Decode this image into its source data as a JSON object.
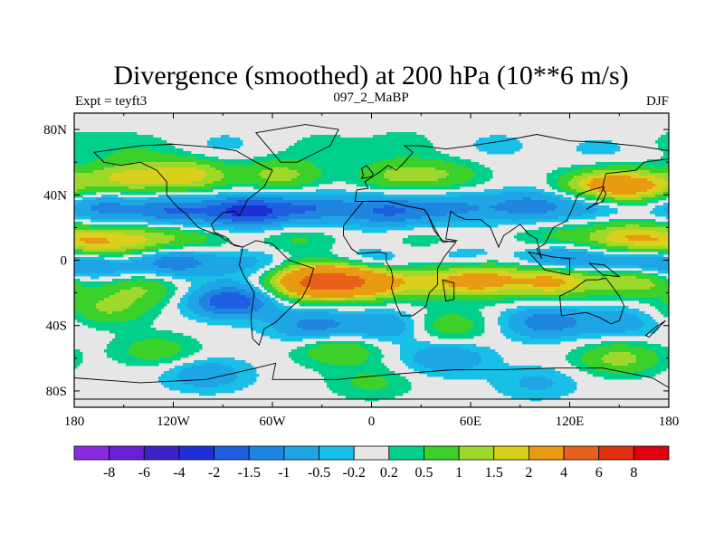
{
  "chart_data": {
    "type": "heatmap",
    "title": "Divergence (smoothed) at 200 hPa (10**6 m/s)",
    "subtitle_left": "Expt = teyft3",
    "subtitle_center": "097_2_MaBP",
    "subtitle_right": "DJF",
    "xlim": [
      -180,
      180
    ],
    "ylim": [
      -90,
      90
    ],
    "x_ticks": [
      {
        "value": -180,
        "label": "180"
      },
      {
        "value": -120,
        "label": "120W"
      },
      {
        "value": -60,
        "label": "60W"
      },
      {
        "value": 0,
        "label": "0"
      },
      {
        "value": 60,
        "label": "60E"
      },
      {
        "value": 120,
        "label": "120E"
      },
      {
        "value": 180,
        "label": "180"
      }
    ],
    "y_ticks": [
      {
        "value": 80,
        "label": "80N"
      },
      {
        "value": 40,
        "label": "40N"
      },
      {
        "value": 0,
        "label": "0"
      },
      {
        "value": -40,
        "label": "40S"
      },
      {
        "value": -80,
        "label": "80S"
      }
    ],
    "colorbar": {
      "boundaries": [
        "-8",
        "-6",
        "-4",
        "-2",
        "-1.5",
        "-1",
        "-0.5",
        "-0.2",
        "0.2",
        "0.5",
        "1",
        "1.5",
        "2",
        "4",
        "6",
        "8"
      ],
      "colors": [
        "#8a2be2",
        "#6a1fd8",
        "#3d22c8",
        "#1f2fd6",
        "#1d5fe0",
        "#1e86e0",
        "#1ea5e6",
        "#18c0e8",
        "#e6e6e6",
        "#00d08a",
        "#3bd02a",
        "#9ed82a",
        "#d8d01a",
        "#e89a10",
        "#e8601a",
        "#e03010",
        "#e00010"
      ]
    },
    "features": [
      {
        "lon": -175,
        "lat": 72,
        "value": 0.3
      },
      {
        "lon": -140,
        "lat": 68,
        "value": 0.4
      },
      {
        "lon": -90,
        "lat": 70,
        "value": -0.3
      },
      {
        "lon": -30,
        "lat": 70,
        "value": 0.3
      },
      {
        "lon": 20,
        "lat": 72,
        "value": 0.3
      },
      {
        "lon": 75,
        "lat": 70,
        "value": -0.3
      },
      {
        "lon": 140,
        "lat": 68,
        "value": -0.3
      },
      {
        "lon": -150,
        "lat": 50,
        "value": 1.5
      },
      {
        "lon": -112,
        "lat": 52,
        "value": 1.8
      },
      {
        "lon": -55,
        "lat": 52,
        "value": 1.2
      },
      {
        "lon": 15,
        "lat": 52,
        "value": 1.0
      },
      {
        "lon": 45,
        "lat": 52,
        "value": 0.8
      },
      {
        "lon": 140,
        "lat": 45,
        "value": 2.3
      },
      {
        "lon": 165,
        "lat": 45,
        "value": 1.6
      },
      {
        "lon": -165,
        "lat": 33,
        "value": -1.2
      },
      {
        "lon": -120,
        "lat": 30,
        "value": -1.5
      },
      {
        "lon": -75,
        "lat": 30,
        "value": -2.2
      },
      {
        "lon": -35,
        "lat": 32,
        "value": -1.3
      },
      {
        "lon": 10,
        "lat": 30,
        "value": -1.5
      },
      {
        "lon": 50,
        "lat": 32,
        "value": -1.0
      },
      {
        "lon": 95,
        "lat": 33,
        "value": -1.2
      },
      {
        "lon": 135,
        "lat": 35,
        "value": -1.0
      },
      {
        "lon": -170,
        "lat": 10,
        "value": 1.7
      },
      {
        "lon": -140,
        "lat": 12,
        "value": 1.3
      },
      {
        "lon": -110,
        "lat": 12,
        "value": 0.8
      },
      {
        "lon": -45,
        "lat": 12,
        "value": 0.6
      },
      {
        "lon": 30,
        "lat": 12,
        "value": 0.4
      },
      {
        "lon": 110,
        "lat": 13,
        "value": 0.7
      },
      {
        "lon": 155,
        "lat": 13,
        "value": 2.0
      },
      {
        "lon": -170,
        "lat": -3,
        "value": -1.2
      },
      {
        "lon": -120,
        "lat": 0,
        "value": -1.6
      },
      {
        "lon": -70,
        "lat": -2,
        "value": -0.7
      },
      {
        "lon": 0,
        "lat": -2,
        "value": -0.8
      },
      {
        "lon": 55,
        "lat": 0,
        "value": -0.6
      },
      {
        "lon": 115,
        "lat": 0,
        "value": -1.6
      },
      {
        "lon": 160,
        "lat": 0,
        "value": -1.3
      },
      {
        "lon": -35,
        "lat": -13,
        "value": 4.0
      },
      {
        "lon": -8,
        "lat": -13,
        "value": 3.2
      },
      {
        "lon": 30,
        "lat": -13,
        "value": 1.2
      },
      {
        "lon": 65,
        "lat": -12,
        "value": 2.4
      },
      {
        "lon": 110,
        "lat": -12,
        "value": 2.4
      },
      {
        "lon": 160,
        "lat": -12,
        "value": 1.6
      },
      {
        "lon": -140,
        "lat": -17,
        "value": 1.0
      },
      {
        "lon": -85,
        "lat": -25,
        "value": -2.0
      },
      {
        "lon": -160,
        "lat": -30,
        "value": 1.0
      },
      {
        "lon": -35,
        "lat": -40,
        "value": -1.2
      },
      {
        "lon": 10,
        "lat": -40,
        "value": -1.0
      },
      {
        "lon": 45,
        "lat": -40,
        "value": 0.9
      },
      {
        "lon": 105,
        "lat": -38,
        "value": -1.3
      },
      {
        "lon": 150,
        "lat": -38,
        "value": -0.8
      },
      {
        "lon": -130,
        "lat": -55,
        "value": 0.8
      },
      {
        "lon": -20,
        "lat": -55,
        "value": 1.0
      },
      {
        "lon": 45,
        "lat": -60,
        "value": -1.0
      },
      {
        "lon": 150,
        "lat": -60,
        "value": 1.2
      },
      {
        "lon": -100,
        "lat": -70,
        "value": -0.9
      },
      {
        "lon": 0,
        "lat": -75,
        "value": 0.6
      },
      {
        "lon": 100,
        "lat": -75,
        "value": -0.6
      }
    ],
    "coastlines": [
      [
        [
          -168,
          66
        ],
        [
          -140,
          70
        ],
        [
          -120,
          71
        ],
        [
          -95,
          69
        ],
        [
          -82,
          67
        ],
        [
          -70,
          60
        ],
        [
          -60,
          55
        ],
        [
          -65,
          45
        ],
        [
          -75,
          37
        ],
        [
          -80,
          27
        ],
        [
          -83,
          30
        ],
        [
          -90,
          29
        ],
        [
          -97,
          22
        ],
        [
          -95,
          17
        ],
        [
          -88,
          14
        ],
        [
          -83,
          9
        ],
        [
          -78,
          8
        ],
        [
          -85,
          10
        ],
        [
          -92,
          15
        ],
        [
          -105,
          20
        ],
        [
          -112,
          28
        ],
        [
          -118,
          33
        ],
        [
          -124,
          40
        ],
        [
          -124,
          48
        ],
        [
          -130,
          55
        ],
        [
          -140,
          60
        ],
        [
          -152,
          58
        ],
        [
          -162,
          60
        ],
        [
          -168,
          66
        ]
      ],
      [
        [
          -55,
          60
        ],
        [
          -45,
          60
        ],
        [
          -25,
          70
        ],
        [
          -20,
          80
        ],
        [
          -40,
          83
        ],
        [
          -70,
          78
        ],
        [
          -55,
          60
        ]
      ],
      [
        [
          -78,
          8
        ],
        [
          -70,
          12
        ],
        [
          -60,
          10
        ],
        [
          -50,
          0
        ],
        [
          -35,
          -5
        ],
        [
          -38,
          -15
        ],
        [
          -42,
          -23
        ],
        [
          -50,
          -30
        ],
        [
          -58,
          -38
        ],
        [
          -65,
          -42
        ],
        [
          -68,
          -52
        ],
        [
          -72,
          -48
        ],
        [
          -73,
          -35
        ],
        [
          -71,
          -20
        ],
        [
          -77,
          -10
        ],
        [
          -80,
          -3
        ],
        [
          -78,
          8
        ]
      ],
      [
        [
          -10,
          36
        ],
        [
          -9,
          43
        ],
        [
          -2,
          44
        ],
        [
          -4,
          48
        ],
        [
          5,
          54
        ],
        [
          10,
          58
        ],
        [
          15,
          55
        ],
        [
          20,
          60
        ],
        [
          25,
          66
        ],
        [
          20,
          70
        ],
        [
          30,
          70
        ],
        [
          45,
          68
        ],
        [
          60,
          70
        ],
        [
          80,
          73
        ],
        [
          100,
          77
        ],
        [
          120,
          73
        ],
        [
          140,
          72
        ],
        [
          160,
          70
        ],
        [
          180,
          67
        ],
        [
          180,
          62
        ],
        [
          165,
          60
        ],
        [
          160,
          55
        ],
        [
          142,
          53
        ],
        [
          140,
          45
        ],
        [
          130,
          42
        ],
        [
          125,
          40
        ],
        [
          121,
          30
        ],
        [
          118,
          24
        ],
        [
          110,
          20
        ],
        [
          105,
          10
        ],
        [
          100,
          7
        ],
        [
          103,
          1
        ],
        [
          100,
          13
        ],
        [
          95,
          16
        ],
        [
          90,
          22
        ],
        [
          80,
          15
        ],
        [
          77,
          8
        ],
        [
          72,
          20
        ],
        [
          66,
          25
        ],
        [
          57,
          25
        ],
        [
          52,
          27
        ],
        [
          48,
          30
        ],
        [
          45,
          13
        ],
        [
          52,
          12
        ],
        [
          43,
          11
        ],
        [
          38,
          20
        ],
        [
          34,
          28
        ],
        [
          32,
          31
        ],
        [
          22,
          33
        ],
        [
          10,
          36
        ],
        [
          -5,
          36
        ],
        [
          -10,
          36
        ]
      ],
      [
        [
          -17,
          21
        ],
        [
          -17,
          15
        ],
        [
          -12,
          7
        ],
        [
          -8,
          4
        ],
        [
          5,
          5
        ],
        [
          9,
          4
        ],
        [
          9,
          -1
        ],
        [
          12,
          -6
        ],
        [
          13,
          -12
        ],
        [
          12,
          -17
        ],
        [
          15,
          -27
        ],
        [
          18,
          -34
        ],
        [
          25,
          -34
        ],
        [
          33,
          -28
        ],
        [
          35,
          -20
        ],
        [
          40,
          -15
        ],
        [
          40,
          -5
        ],
        [
          44,
          2
        ],
        [
          51,
          11
        ],
        [
          43,
          12
        ],
        [
          38,
          18
        ],
        [
          34,
          28
        ],
        [
          32,
          31
        ],
        [
          22,
          33
        ],
        [
          10,
          36
        ],
        [
          -5,
          36
        ],
        [
          -10,
          30
        ],
        [
          -17,
          21
        ]
      ],
      [
        [
          43,
          -12
        ],
        [
          50,
          -14
        ],
        [
          50,
          -24
        ],
        [
          45,
          -25
        ],
        [
          44,
          -18
        ],
        [
          43,
          -12
        ]
      ],
      [
        [
          114,
          -22
        ],
        [
          122,
          -18
        ],
        [
          130,
          -12
        ],
        [
          137,
          -12
        ],
        [
          142,
          -11
        ],
        [
          145,
          -15
        ],
        [
          150,
          -22
        ],
        [
          153,
          -28
        ],
        [
          150,
          -37
        ],
        [
          145,
          -39
        ],
        [
          138,
          -35
        ],
        [
          130,
          -32
        ],
        [
          115,
          -34
        ],
        [
          114,
          -22
        ]
      ],
      [
        [
          95,
          5
        ],
        [
          105,
          -6
        ],
        [
          115,
          -8
        ],
        [
          120,
          -9
        ],
        [
          120,
          1
        ],
        [
          110,
          2
        ],
        [
          100,
          4
        ],
        [
          95,
          5
        ]
      ],
      [
        [
          132,
          -2
        ],
        [
          141,
          -3
        ],
        [
          150,
          -10
        ],
        [
          140,
          -9
        ],
        [
          132,
          -2
        ]
      ],
      [
        [
          130,
          31
        ],
        [
          135,
          34
        ],
        [
          140,
          36
        ],
        [
          142,
          41
        ],
        [
          140,
          44
        ],
        [
          141,
          45
        ],
        [
          136,
          35
        ],
        [
          130,
          31
        ]
      ],
      [
        [
          166,
          -46
        ],
        [
          172,
          -41
        ],
        [
          178,
          -37
        ],
        [
          174,
          -41
        ],
        [
          168,
          -47
        ],
        [
          166,
          -46
        ]
      ],
      [
        [
          -6,
          50
        ],
        [
          0,
          51
        ],
        [
          1,
          53
        ],
        [
          -3,
          58
        ],
        [
          -6,
          56
        ],
        [
          -5,
          52
        ],
        [
          -6,
          50
        ]
      ],
      [
        [
          -180,
          -72
        ],
        [
          -140,
          -75
        ],
        [
          -100,
          -73
        ],
        [
          -70,
          -66
        ],
        [
          -58,
          -63
        ],
        [
          -60,
          -73
        ],
        [
          -20,
          -73
        ],
        [
          10,
          -70
        ],
        [
          50,
          -67
        ],
        [
          80,
          -67
        ],
        [
          110,
          -66
        ],
        [
          140,
          -66
        ],
        [
          170,
          -72
        ],
        [
          180,
          -78
        ],
        [
          180,
          -85
        ],
        [
          -180,
          -85
        ],
        [
          -180,
          -72
        ]
      ]
    ]
  }
}
